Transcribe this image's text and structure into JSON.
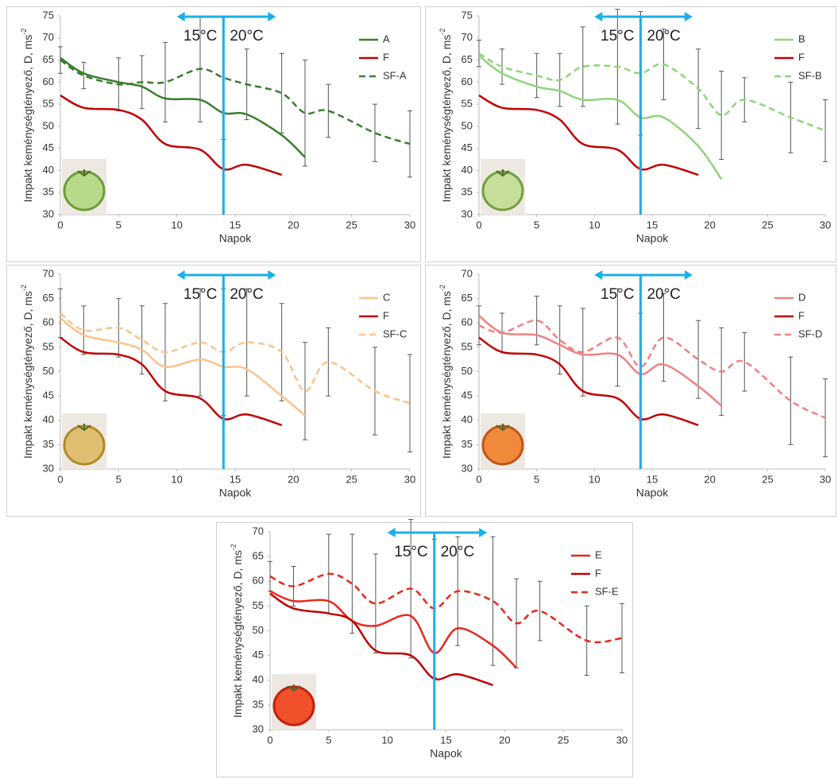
{
  "chart_data": [
    {
      "type": "line",
      "xlabel": "Napok",
      "ylabel": "Impakt keménységtényező, D, ms",
      "ylabel_superscript": "-2",
      "x": [
        0,
        2,
        5,
        7,
        9,
        12,
        14,
        16,
        19,
        21,
        23,
        27,
        30
      ],
      "xlim": [
        0,
        30
      ],
      "xticks": [
        0,
        5,
        10,
        15,
        20,
        25,
        30
      ],
      "ylim": [
        30,
        75
      ],
      "yticks": [
        30,
        35,
        40,
        45,
        50,
        55,
        60,
        65,
        70,
        75
      ],
      "annotations": [
        "15°C",
        "20°C"
      ],
      "marker_x": 14,
      "arrow_x": [
        10,
        18.5
      ],
      "marker_color": "#1ab0e8",
      "series": [
        {
          "name": "A",
          "color": "#3a7d2c",
          "dashed": false,
          "values": [
            65.5,
            62,
            60,
            59,
            56.3,
            56,
            53,
            52.7,
            48,
            43,
            null,
            null,
            null
          ]
        },
        {
          "name": "F",
          "color": "#c00000",
          "dashed": false,
          "values": [
            57,
            54.2,
            53.7,
            51.5,
            46,
            44.7,
            40.3,
            41.3,
            39,
            null,
            null,
            null,
            null
          ]
        },
        {
          "name": "SF-A",
          "color": "#3a7d2c",
          "dashed": true,
          "values": [
            65,
            61.5,
            59.5,
            60,
            60,
            63,
            61,
            59.5,
            57.5,
            53,
            53.5,
            48.5,
            46
          ],
          "errors": [
            3,
            3,
            6,
            6,
            9,
            12,
            14,
            8,
            9,
            12,
            6,
            6.5,
            7.5
          ]
        }
      ]
    },
    {
      "type": "line",
      "xlabel": "Napok",
      "ylabel": "Impakt keménységtényező, D, ms",
      "ylabel_superscript": "-2",
      "x": [
        0,
        2,
        5,
        7,
        9,
        12,
        14,
        16,
        19,
        21,
        23,
        27,
        30
      ],
      "xlim": [
        0,
        30
      ],
      "xticks": [
        0,
        5,
        10,
        15,
        20,
        25,
        30
      ],
      "ylim": [
        30,
        75
      ],
      "yticks": [
        30,
        35,
        40,
        45,
        50,
        55,
        60,
        65,
        70,
        75
      ],
      "annotations": [
        "15°C",
        "20°C"
      ],
      "marker_x": 14,
      "arrow_x": [
        10,
        18.5
      ],
      "marker_color": "#1ab0e8",
      "series": [
        {
          "name": "B",
          "color": "#8fd47a",
          "dashed": false,
          "values": [
            66,
            62,
            59,
            58,
            56,
            56,
            52,
            52,
            45.5,
            38,
            null,
            null,
            null
          ]
        },
        {
          "name": "F",
          "color": "#c00000",
          "dashed": false,
          "values": [
            57,
            54.2,
            53.7,
            51.5,
            46,
            44.7,
            40.3,
            41.3,
            39,
            null,
            null,
            null,
            null
          ]
        },
        {
          "name": "SF-B",
          "color": "#8fd47a",
          "dashed": true,
          "values": [
            66.5,
            63.5,
            61.5,
            60.5,
            63.5,
            63.5,
            62,
            64,
            58.5,
            52.5,
            56,
            52,
            49
          ],
          "errors": [
            3,
            4,
            5,
            6,
            9,
            13,
            14,
            8,
            9,
            10,
            5,
            8,
            7
          ]
        }
      ]
    },
    {
      "type": "line",
      "xlabel": "Napok",
      "ylabel": "Impakt keménységtényező, D, ms",
      "ylabel_superscript": "-2",
      "x": [
        0,
        2,
        5,
        7,
        9,
        12,
        14,
        16,
        19,
        21,
        23,
        27,
        30
      ],
      "xlim": [
        0,
        30
      ],
      "xticks": [
        0,
        5,
        10,
        15,
        20,
        25,
        30
      ],
      "ylim": [
        30,
        70
      ],
      "yticks": [
        30,
        35,
        40,
        45,
        50,
        55,
        60,
        65,
        70
      ],
      "annotations": [
        "15°C",
        "20°C"
      ],
      "marker_x": 14,
      "arrow_x": [
        10,
        18.5
      ],
      "marker_color": "#1ab0e8",
      "series": [
        {
          "name": "C",
          "color": "#f9c38b",
          "dashed": false,
          "values": [
            61,
            57.5,
            56,
            54.5,
            51,
            52.5,
            51,
            50.5,
            45,
            41,
            null,
            null,
            null
          ]
        },
        {
          "name": "F",
          "color": "#c00000",
          "dashed": false,
          "values": [
            57,
            54,
            53.5,
            51.5,
            46,
            44.5,
            40.3,
            41.2,
            39,
            null,
            null,
            null,
            null
          ]
        },
        {
          "name": "SF-C",
          "color": "#f9c38b",
          "dashed": true,
          "values": [
            62,
            58.5,
            59,
            56.5,
            54,
            56,
            54,
            56,
            54,
            46,
            52,
            46,
            43.5
          ],
          "errors": [
            5,
            5,
            6,
            7,
            10,
            11,
            13,
            11,
            10,
            10,
            7,
            9,
            10
          ]
        }
      ]
    },
    {
      "type": "line",
      "xlabel": "Napok",
      "ylabel": "Impakt keménységtényező, D, ms",
      "ylabel_superscript": "-2",
      "x": [
        0,
        2,
        5,
        7,
        9,
        12,
        14,
        16,
        19,
        21,
        23,
        27,
        30
      ],
      "xlim": [
        0,
        30
      ],
      "xticks": [
        0,
        5,
        10,
        15,
        20,
        25,
        30
      ],
      "ylim": [
        30,
        70
      ],
      "yticks": [
        30,
        35,
        40,
        45,
        50,
        55,
        60,
        65,
        70
      ],
      "annotations": [
        "15°C",
        "20°C"
      ],
      "marker_x": 14,
      "arrow_x": [
        10,
        18.5
      ],
      "marker_color": "#1ab0e8",
      "series": [
        {
          "name": "D",
          "color": "#f08080",
          "dashed": false,
          "values": [
            61.5,
            58,
            57.5,
            55.5,
            53.5,
            53.5,
            49.5,
            51.5,
            47,
            43,
            null,
            null,
            null
          ]
        },
        {
          "name": "F",
          "color": "#c00000",
          "dashed": false,
          "values": [
            57,
            54,
            53.5,
            51.5,
            46,
            44.5,
            40.3,
            41.2,
            39,
            null,
            null,
            null,
            null
          ]
        },
        {
          "name": "SF-D",
          "color": "#f08080",
          "dashed": true,
          "values": [
            59.5,
            58,
            60.5,
            56.5,
            54,
            57,
            51,
            57,
            52.5,
            50,
            52,
            44,
            40.5
          ],
          "errors": [
            4,
            4,
            5,
            7,
            9,
            10,
            11,
            9,
            8,
            9,
            6,
            9,
            8
          ]
        }
      ]
    },
    {
      "type": "line",
      "xlabel": "Napok",
      "ylabel": "Impakt keménységtényező, D, ms",
      "ylabel_superscript": "-2",
      "x": [
        0,
        2,
        5,
        7,
        9,
        12,
        14,
        16,
        19,
        21,
        23,
        27,
        30
      ],
      "xlim": [
        0,
        30
      ],
      "xticks": [
        0,
        5,
        10,
        15,
        20,
        25,
        30
      ],
      "ylim": [
        30,
        70
      ],
      "yticks": [
        30,
        35,
        40,
        45,
        50,
        55,
        60,
        65,
        70
      ],
      "annotations": [
        "15°C",
        "20°C"
      ],
      "marker_x": 14,
      "arrow_x": [
        10,
        18.5
      ],
      "marker_color": "#1ab0e8",
      "series": [
        {
          "name": "E",
          "color": "#e8271e",
          "dashed": false,
          "values": [
            58,
            56,
            56,
            52,
            51,
            53,
            45.5,
            50.5,
            47,
            42.5,
            null,
            null,
            null
          ]
        },
        {
          "name": "F",
          "color": "#c00000",
          "dashed": false,
          "values": [
            57.5,
            54.5,
            53.5,
            52,
            46,
            45,
            40.3,
            41.2,
            39,
            null,
            null,
            null,
            null
          ]
        },
        {
          "name": "SF-E",
          "color": "#e8271e",
          "dashed": true,
          "values": [
            61,
            59,
            61.5,
            59.5,
            55.5,
            58.5,
            54.5,
            58,
            56,
            51.5,
            54,
            48,
            48.5
          ],
          "errors": [
            3,
            4,
            8,
            10,
            10,
            14,
            14,
            11,
            13,
            9,
            6,
            7,
            7
          ]
        }
      ]
    }
  ]
}
